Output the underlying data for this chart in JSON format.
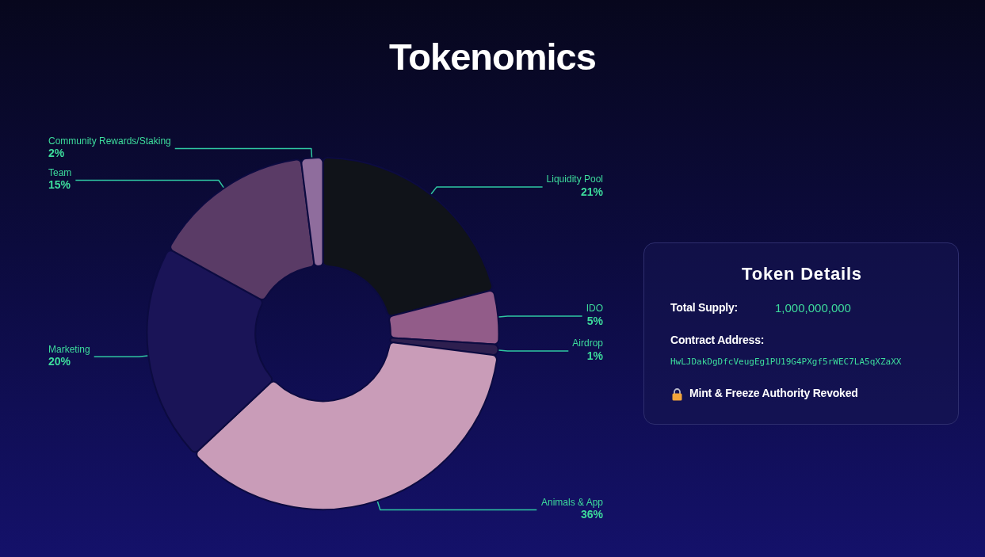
{
  "chart_data": [
    {
      "type": "donut",
      "title": "Tokenomics",
      "categories": [
        "Liquidity Pool",
        "IDO",
        "Airdrop",
        "Animals & App",
        "Marketing",
        "Team",
        "Community Rewards/Staking"
      ],
      "values": [
        21,
        5,
        1,
        36,
        20,
        15,
        2
      ],
      "value_labels": [
        "21%",
        "5%",
        "1%",
        "36%",
        "20%",
        "15%",
        "2%"
      ],
      "colors": [
        "#101319",
        "#925c89",
        "#2e1f4f",
        "#c99cb8",
        "#1a1457",
        "#5a3b66",
        "#8f6d9d"
      ]
    },
    {
      "type": "other",
      "title": "Token Details",
      "annotations": [
        "Total Supply:",
        "1,000,000,000",
        "Contract Address:",
        "HwLJDakDgDfcVeugEg1PU19G4PXgf5rWEC7LA5qXZaXX",
        "Mint & Freeze Authority Revoked"
      ]
    }
  ]
}
